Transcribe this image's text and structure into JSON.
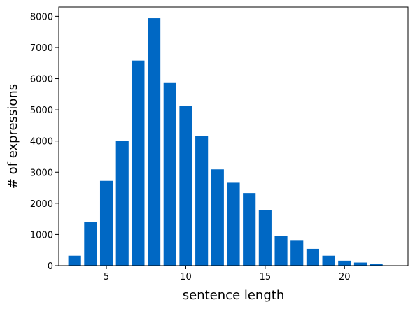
{
  "chart_data": {
    "type": "bar",
    "title": "",
    "xlabel": "sentence length",
    "ylabel": "# of expressions",
    "x": [
      3,
      4,
      5,
      6,
      7,
      8,
      9,
      10,
      11,
      12,
      13,
      14,
      15,
      16,
      17,
      18,
      19,
      20,
      21,
      22
    ],
    "values": [
      320,
      1400,
      2720,
      4000,
      6580,
      7940,
      5860,
      5120,
      4150,
      3090,
      2660,
      2330,
      1780,
      950,
      800,
      540,
      320,
      160,
      100,
      50
    ],
    "xlim": [
      2.0,
      24.0
    ],
    "ylim": [
      0,
      8300
    ],
    "xticks": [
      5,
      10,
      15,
      20
    ],
    "yticks": [
      0,
      1000,
      2000,
      3000,
      4000,
      5000,
      6000,
      7000,
      8000
    ],
    "bar_color": "#0068c4",
    "grid": false,
    "legend": "none"
  }
}
